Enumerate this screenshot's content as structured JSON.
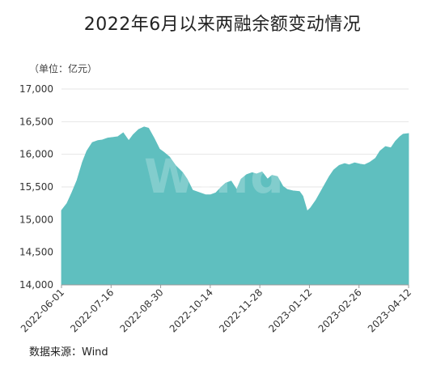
{
  "title": "2022年6月以来两融余额变动情况",
  "unit": "（单位：亿元）",
  "source": "数据来源：Wind",
  "watermark": "Wind",
  "chart_data": {
    "type": "area",
    "title": "2022年6月以来两融余额变动情况",
    "ylim": [
      14000,
      17000
    ],
    "yticks": [
      14000,
      14500,
      15000,
      15500,
      16000,
      16500,
      17000
    ],
    "ytick_labels": [
      "14,000",
      "14,500",
      "15,000",
      "15,500",
      "16,000",
      "16,500",
      "17,000"
    ],
    "xlim": [
      "2022-06-01",
      "2023-04-12"
    ],
    "xticks": [
      "2022-06-01",
      "2022-07-16",
      "2022-08-30",
      "2022-10-14",
      "2022-11-28",
      "2023-01-12",
      "2023-02-26",
      "2023-04-12"
    ],
    "fill_color": "#5fbfbf",
    "grid": true,
    "legend": "none",
    "series": [
      {
        "x": [
          "2022-06-01",
          "2022-06-06",
          "2022-06-10",
          "2022-06-15",
          "2022-06-20",
          "2022-06-24",
          "2022-06-29",
          "2022-07-04",
          "2022-07-08",
          "2022-07-13",
          "2022-07-18",
          "2022-07-22",
          "2022-07-27",
          "2022-08-01",
          "2022-08-05",
          "2022-08-10",
          "2022-08-15",
          "2022-08-19",
          "2022-08-24",
          "2022-08-29",
          "2022-09-02",
          "2022-09-07",
          "2022-09-13",
          "2022-09-19",
          "2022-09-23",
          "2022-09-28",
          "2022-10-10",
          "2022-10-14",
          "2022-10-19",
          "2022-10-24",
          "2022-10-28",
          "2022-11-02",
          "2022-11-07",
          "2022-11-11",
          "2022-11-16",
          "2022-11-21",
          "2022-11-25",
          "2022-11-30",
          "2022-12-05",
          "2022-12-09",
          "2022-12-14",
          "2022-12-19",
          "2022-12-23",
          "2022-12-28",
          "2023-01-03",
          "2023-01-06",
          "2023-01-10",
          "2023-01-13",
          "2023-01-18",
          "2023-01-30",
          "2023-02-03",
          "2023-02-08",
          "2023-02-13",
          "2023-02-17",
          "2023-02-22",
          "2023-02-27",
          "2023-03-03",
          "2023-03-08",
          "2023-03-13",
          "2023-03-17",
          "2023-03-22",
          "2023-03-27",
          "2023-03-31",
          "2023-04-04",
          "2023-04-07",
          "2023-04-12"
        ],
        "values": [
          15140,
          15250,
          15400,
          15600,
          15880,
          16050,
          16180,
          16210,
          16220,
          16250,
          16260,
          16270,
          16330,
          16210,
          16300,
          16380,
          16420,
          16400,
          16250,
          16080,
          16030,
          15960,
          15820,
          15720,
          15620,
          15450,
          15380,
          15380,
          15410,
          15500,
          15560,
          15590,
          15460,
          15620,
          15690,
          15720,
          15700,
          15730,
          15620,
          15680,
          15660,
          15510,
          15460,
          15440,
          15430,
          15360,
          15130,
          15180,
          15300,
          15660,
          15760,
          15830,
          15860,
          15840,
          15870,
          15850,
          15840,
          15880,
          15940,
          16050,
          16120,
          16100,
          16200,
          16270,
          16310,
          16320
        ]
      }
    ]
  }
}
